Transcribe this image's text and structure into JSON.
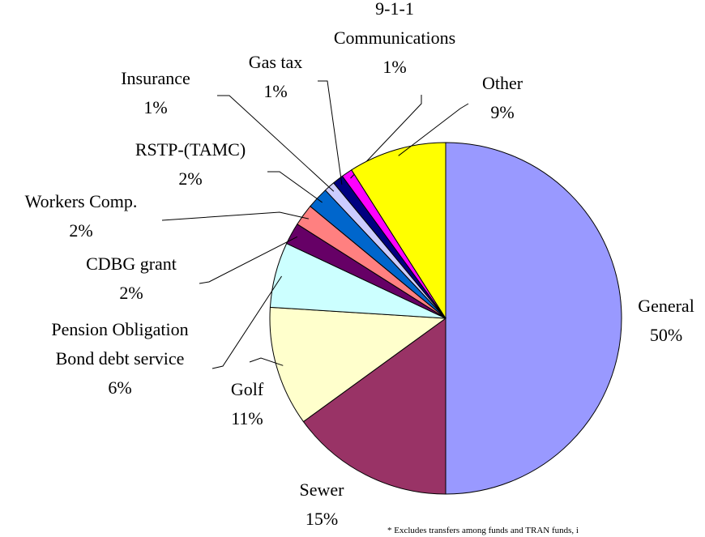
{
  "chart_data": {
    "type": "pie",
    "categories": [
      "General",
      "Sewer",
      "Golf",
      "Pension Obligation\nBond debt service",
      "CDBG grant",
      "Workers Comp.",
      "RSTP-(TAMC)",
      "Insurance",
      "Gas tax",
      "9-1-1\nCommunications",
      "Other"
    ],
    "values": [
      50,
      15,
      11,
      6,
      2,
      2,
      2,
      1,
      1,
      1,
      9
    ],
    "value_labels": [
      "50%",
      "15%",
      "11%",
      "6%",
      "2%",
      "2%",
      "2%",
      "1%",
      "1%",
      "1%",
      "9%"
    ],
    "colors": [
      "#9999ff",
      "#993366",
      "#ffffcc",
      "#ccffff",
      "#660066",
      "#ff8080",
      "#0066cc",
      "#ccccff",
      "#000080",
      "#ff00ff",
      "#ffff00"
    ],
    "footnote": "* Excludes transfers among funds and TRAN funds, i"
  }
}
